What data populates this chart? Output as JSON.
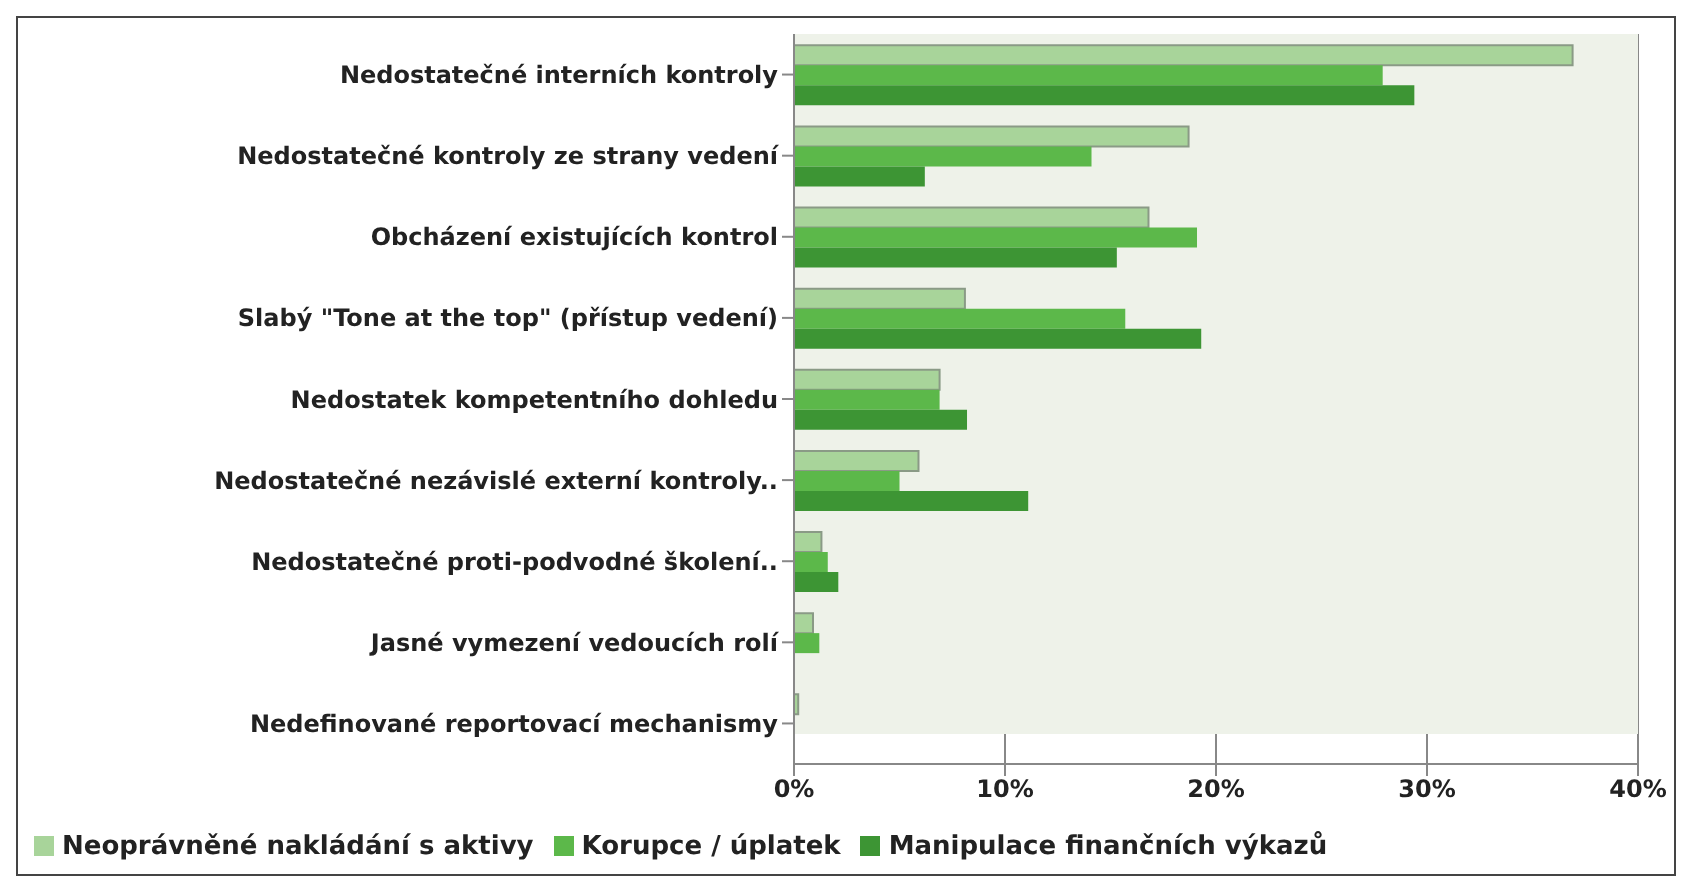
{
  "chart_data": {
    "type": "bar",
    "orientation": "horizontal",
    "categories": [
      "Nedostatečné interních kontroly",
      "Nedostatečné kontroly ze strany vedení",
      "Obcházení existujících kontrol",
      "Slabý \"Tone at the top\" (přístup vedení)",
      "Nedostatek kompetentního dohledu",
      "Nedostatečné nezávislé externí kontroly..",
      "Nedostatečné proti-podvodné školení..",
      "Jasné vymezení vedoucích rolí",
      "Nedefinované reportovací mechanismy"
    ],
    "series": [
      {
        "name": "Neoprávněné nakládání s aktivy",
        "color": "#a8d49a",
        "values": [
          36.9,
          18.7,
          16.8,
          8.1,
          6.9,
          5.9,
          1.3,
          0.9,
          0.2
        ]
      },
      {
        "name": "Korupce / úplatek",
        "color": "#5cb84a",
        "values": [
          27.9,
          14.1,
          19.1,
          15.7,
          6.9,
          5.0,
          1.6,
          1.2,
          0
        ]
      },
      {
        "name": "Manipulace finančních výkazů",
        "color": "#3d9534",
        "values": [
          29.4,
          6.2,
          15.3,
          19.3,
          8.2,
          11.1,
          2.1,
          0,
          0
        ]
      }
    ],
    "xlim": [
      0,
      40
    ],
    "xticks": [
      {
        "value": 0,
        "label": "0%"
      },
      {
        "value": 10,
        "label": "10%"
      },
      {
        "value": 20,
        "label": "20%"
      },
      {
        "value": 30,
        "label": "30%"
      },
      {
        "value": 40,
        "label": "40%"
      }
    ],
    "grid": "x",
    "legend": "bottom"
  }
}
